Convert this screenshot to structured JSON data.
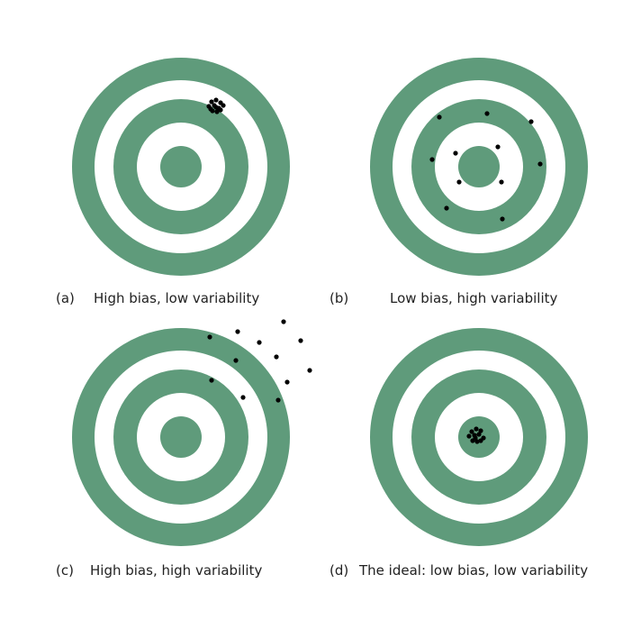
{
  "colors": {
    "ring": "#5f9b7b",
    "gap": "#ffffff",
    "dot": "#000000",
    "text": "#222222"
  },
  "panels": [
    {
      "letter": "(a)",
      "caption": "High bias, low variability"
    },
    {
      "letter": "(b)",
      "caption": "Low bias, high variability"
    },
    {
      "letter": "(c)",
      "caption": "High bias, high variability"
    },
    {
      "letter": "(d)",
      "caption": "The ideal: low bias, low variability"
    }
  ]
}
